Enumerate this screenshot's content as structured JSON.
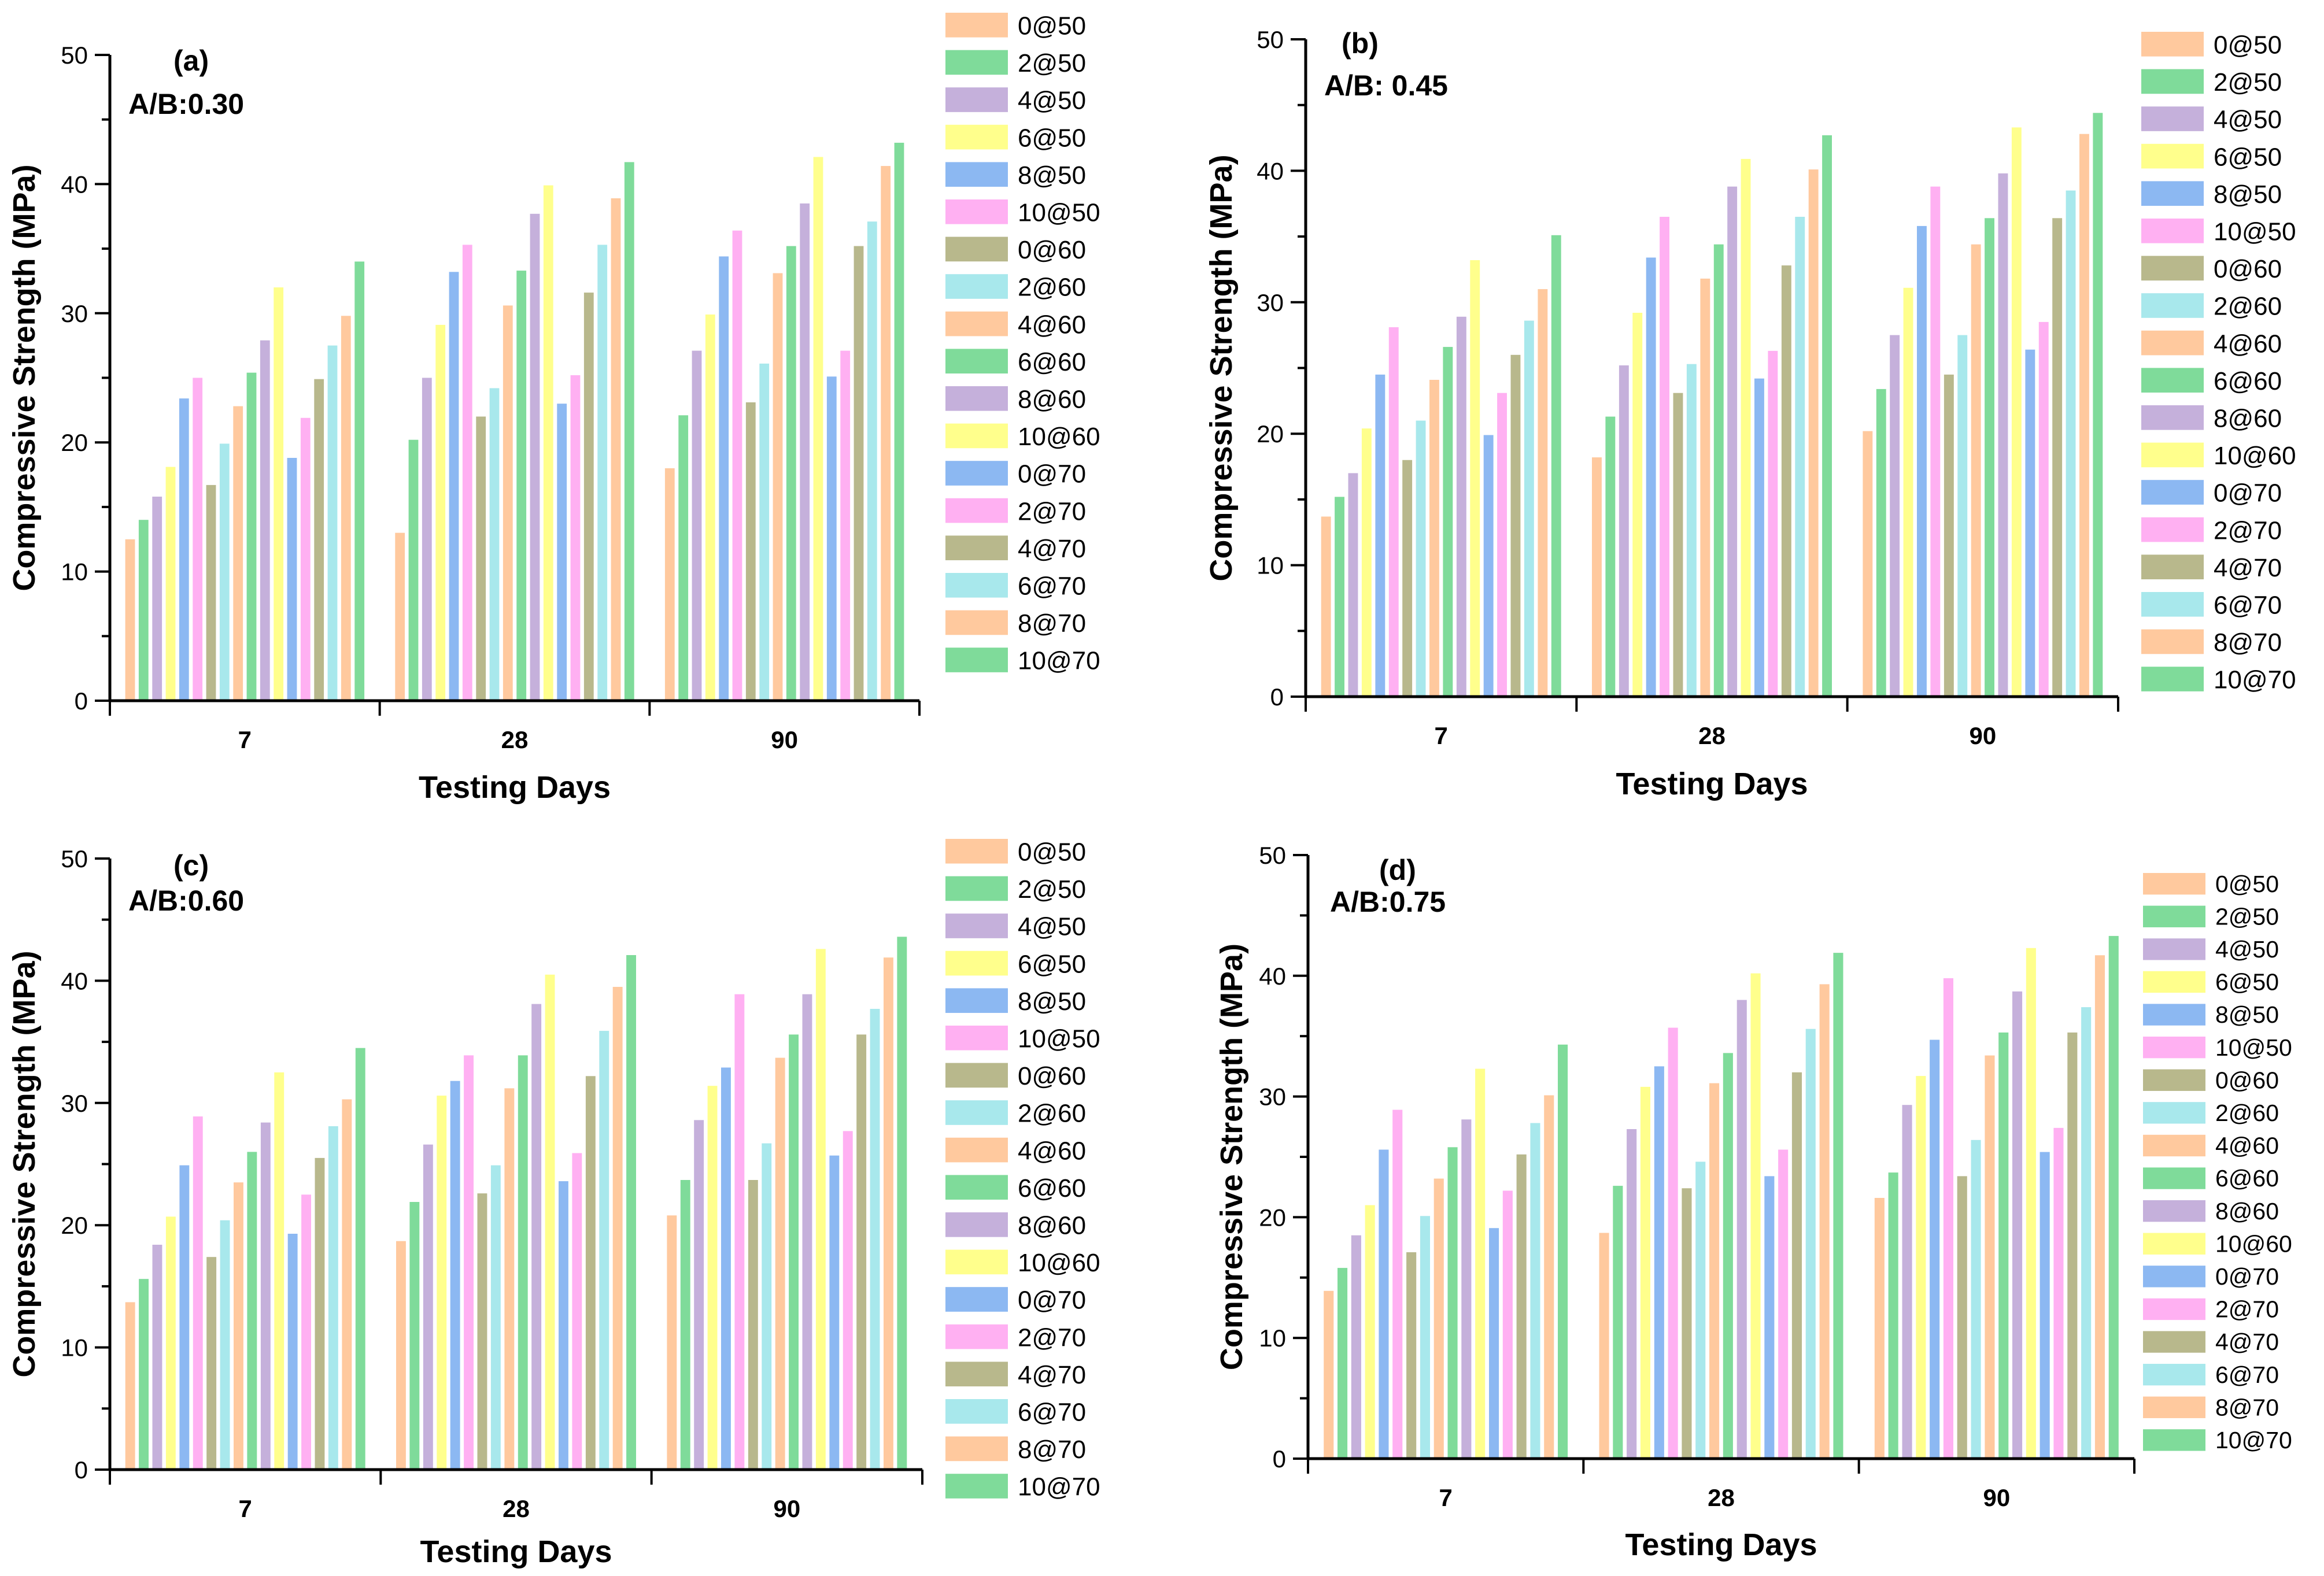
{
  "palette": [
    "#FFC99E",
    "#7FDB9A",
    "#C5B0DB",
    "#FFFF8C",
    "#8CB8F2",
    "#FFB0F2",
    "#B8B88C",
    "#A8E8EC"
  ],
  "legend_labels": [
    "0@50",
    "2@50",
    "4@50",
    "6@50",
    "8@50",
    "10@50",
    "0@60",
    "2@60",
    "4@60",
    "6@60",
    "8@60",
    "10@60",
    "0@70",
    "2@70",
    "4@70",
    "6@70",
    "8@70",
    "10@70"
  ],
  "chart_data": [
    {
      "type": "bar",
      "panel_label": "(a)",
      "ab_label": "A/B:0.30",
      "xlabel": "Testing Days",
      "ylabel": "Compressive Strength (MPa)",
      "categories": [
        "7",
        "28",
        "90"
      ],
      "ylim": [
        0,
        50
      ],
      "yticks": [
        "0",
        "10",
        "20",
        "30",
        "40",
        "50"
      ],
      "series": [
        {
          "name": "0@50",
          "values": [
            12.5,
            13,
            18
          ]
        },
        {
          "name": "2@50",
          "values": [
            14,
            20.2,
            22.1
          ]
        },
        {
          "name": "4@50",
          "values": [
            15.8,
            25,
            27.1
          ]
        },
        {
          "name": "6@50",
          "values": [
            18.1,
            29.1,
            29.9
          ]
        },
        {
          "name": "8@50",
          "values": [
            23.4,
            33.2,
            34.4
          ]
        },
        {
          "name": "10@50",
          "values": [
            25,
            35.3,
            36.4
          ]
        },
        {
          "name": "0@60",
          "values": [
            16.7,
            22,
            23.1
          ]
        },
        {
          "name": "2@60",
          "values": [
            19.9,
            24.2,
            26.1
          ]
        },
        {
          "name": "4@60",
          "values": [
            22.8,
            30.6,
            33.1
          ]
        },
        {
          "name": "6@60",
          "values": [
            25.4,
            33.3,
            35.2
          ]
        },
        {
          "name": "8@60",
          "values": [
            27.9,
            37.7,
            38.5
          ]
        },
        {
          "name": "10@60",
          "values": [
            32,
            39.9,
            42.1
          ]
        },
        {
          "name": "0@70",
          "values": [
            18.8,
            23,
            25.1
          ]
        },
        {
          "name": "2@70",
          "values": [
            21.9,
            25.2,
            27.1
          ]
        },
        {
          "name": "4@70",
          "values": [
            24.9,
            31.6,
            35.2
          ]
        },
        {
          "name": "6@70",
          "values": [
            27.5,
            35.3,
            37.1
          ]
        },
        {
          "name": "8@70",
          "values": [
            29.8,
            38.9,
            41.4
          ]
        },
        {
          "name": "10@70",
          "values": [
            34,
            41.7,
            43.2
          ]
        }
      ]
    },
    {
      "type": "bar",
      "panel_label": "(b)",
      "ab_label": "A/B: 0.45",
      "xlabel": "Testing Days",
      "ylabel": "Compressive Strength (MPa)",
      "categories": [
        "7",
        "28",
        "90"
      ],
      "ylim": [
        0,
        50
      ],
      "yticks": [
        "0",
        "10",
        "20",
        "30",
        "40",
        "50"
      ],
      "series": [
        {
          "name": "0@50",
          "values": [
            13.7,
            18.2,
            20.2
          ]
        },
        {
          "name": "2@50",
          "values": [
            15.2,
            21.3,
            23.4
          ]
        },
        {
          "name": "4@50",
          "values": [
            17,
            25.2,
            27.5
          ]
        },
        {
          "name": "6@50",
          "values": [
            20.4,
            29.2,
            31.1
          ]
        },
        {
          "name": "8@50",
          "values": [
            24.5,
            33.4,
            35.8
          ]
        },
        {
          "name": "10@50",
          "values": [
            28.1,
            36.5,
            38.8
          ]
        },
        {
          "name": "0@60",
          "values": [
            18,
            23.1,
            24.5
          ]
        },
        {
          "name": "2@60",
          "values": [
            21,
            25.3,
            27.5
          ]
        },
        {
          "name": "4@60",
          "values": [
            24.1,
            31.8,
            34.4
          ]
        },
        {
          "name": "6@60",
          "values": [
            26.6,
            34.4,
            36.4
          ]
        },
        {
          "name": "8@60",
          "values": [
            28.9,
            38.8,
            39.8
          ]
        },
        {
          "name": "10@60",
          "values": [
            33.2,
            40.9,
            43.3
          ]
        },
        {
          "name": "0@70",
          "values": [
            19.9,
            24.2,
            26.4
          ]
        },
        {
          "name": "2@70",
          "values": [
            23.1,
            26.3,
            28.5
          ]
        },
        {
          "name": "4@70",
          "values": [
            26,
            32.8,
            36.4
          ]
        },
        {
          "name": "6@70",
          "values": [
            28.6,
            36.5,
            38.5
          ]
        },
        {
          "name": "8@70",
          "values": [
            31,
            40.1,
            42.8
          ]
        },
        {
          "name": "10@70",
          "values": [
            35.1,
            42.7,
            44.4
          ]
        }
      ]
    },
    {
      "type": "bar",
      "panel_label": "(c)",
      "ab_label": "A/B:0.60",
      "xlabel": "Testing Days",
      "ylabel": "Compressive Strength (MPa)",
      "categories": [
        "7",
        "28",
        "90"
      ],
      "ylim": [
        0,
        50
      ],
      "yticks": [
        "0",
        "10",
        "20",
        "30",
        "40",
        "50"
      ],
      "series": [
        {
          "name": "0@50",
          "values": [
            13.7,
            18.7,
            20.8
          ]
        },
        {
          "name": "2@50",
          "values": [
            15.6,
            21.9,
            23.7
          ]
        },
        {
          "name": "4@50",
          "values": [
            18.4,
            26.6,
            28.6
          ]
        },
        {
          "name": "6@50",
          "values": [
            20.7,
            30.6,
            31.4
          ]
        },
        {
          "name": "8@50",
          "values": [
            24.9,
            31.8,
            32.9
          ]
        },
        {
          "name": "10@50",
          "values": [
            28.9,
            33.9,
            38.9
          ]
        },
        {
          "name": "0@60",
          "values": [
            17.4,
            22.6,
            23.7
          ]
        },
        {
          "name": "2@60",
          "values": [
            20.4,
            24.9,
            26.7
          ]
        },
        {
          "name": "4@60",
          "values": [
            23.5,
            31.2,
            33.7
          ]
        },
        {
          "name": "6@60",
          "values": [
            26,
            33.9,
            35.6
          ]
        },
        {
          "name": "8@60",
          "values": [
            28.4,
            38.1,
            38.9
          ]
        },
        {
          "name": "10@60",
          "values": [
            32.5,
            40.5,
            42.6
          ]
        },
        {
          "name": "0@70",
          "values": [
            19.3,
            23.6,
            25.7
          ]
        },
        {
          "name": "2@70",
          "values": [
            22.5,
            25.9,
            27.7
          ]
        },
        {
          "name": "4@70",
          "values": [
            25.5,
            32.2,
            35.6
          ]
        },
        {
          "name": "6@70",
          "values": [
            28.1,
            35.9,
            37.7
          ]
        },
        {
          "name": "8@70",
          "values": [
            30.3,
            39.5,
            41.9
          ]
        },
        {
          "name": "10@70",
          "values": [
            34.5,
            42.1,
            43.6
          ]
        }
      ]
    },
    {
      "type": "bar",
      "panel_label": "(d)",
      "ab_label": "A/B:0.75",
      "xlabel": "Testing Days",
      "ylabel": "Compressive Strength (MPa)",
      "categories": [
        "7",
        "28",
        "90"
      ],
      "ylim": [
        0,
        50
      ],
      "yticks": [
        "0",
        "10",
        "20",
        "30",
        "40",
        "50"
      ],
      "series": [
        {
          "name": "0@50",
          "values": [
            13.9,
            18.7,
            21.6
          ]
        },
        {
          "name": "2@50",
          "values": [
            15.8,
            22.6,
            23.7
          ]
        },
        {
          "name": "4@50",
          "values": [
            18.5,
            27.3,
            29.3
          ]
        },
        {
          "name": "6@50",
          "values": [
            21,
            30.8,
            31.7
          ]
        },
        {
          "name": "8@50",
          "values": [
            25.6,
            32.5,
            34.7
          ]
        },
        {
          "name": "10@50",
          "values": [
            28.9,
            35.7,
            39.8
          ]
        },
        {
          "name": "0@60",
          "values": [
            17.1,
            22.4,
            23.4
          ]
        },
        {
          "name": "2@60",
          "values": [
            20.1,
            24.6,
            26.4
          ]
        },
        {
          "name": "4@60",
          "values": [
            23.2,
            31.1,
            33.4
          ]
        },
        {
          "name": "6@60",
          "values": [
            25.8,
            33.6,
            35.3
          ]
        },
        {
          "name": "8@60",
          "values": [
            28.1,
            38,
            38.7
          ]
        },
        {
          "name": "10@60",
          "values": [
            32.3,
            40.2,
            42.3
          ]
        },
        {
          "name": "0@70",
          "values": [
            19.1,
            23.4,
            25.4
          ]
        },
        {
          "name": "2@70",
          "values": [
            22.2,
            25.6,
            27.4
          ]
        },
        {
          "name": "4@70",
          "values": [
            25.2,
            32,
            35.3
          ]
        },
        {
          "name": "6@70",
          "values": [
            27.8,
            35.6,
            37.4
          ]
        },
        {
          "name": "8@70",
          "values": [
            30.1,
            39.3,
            41.7
          ]
        },
        {
          "name": "10@70",
          "values": [
            34.3,
            41.9,
            43.3
          ]
        }
      ]
    }
  ]
}
